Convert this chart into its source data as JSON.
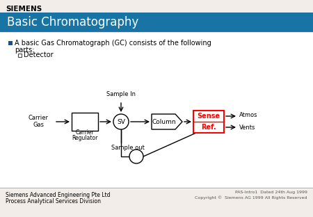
{
  "title": "Basic Chromatography",
  "title_bg_color": "#1874a4",
  "title_text_color": "#ffffff",
  "slide_bg_color": "#f2ede8",
  "content_bg_color": "#ffffff",
  "bullet_text1": "A basic Gas Chromatograph (GC) consists of the following",
  "bullet_text2": "parts:",
  "sub_bullet": "Detector",
  "siemens_logo": "SIEMENS",
  "footer_left1": "Siemens Advanced Engineering Pte Ltd",
  "footer_left2": "Process Analytical Services Division",
  "footer_right1": "PAS-Intro1  Dated 24th Aug 1999",
  "footer_right2": "Copyright ©  Siemens AG 1999 All Rights Reserved",
  "carrier_gas": [
    "Carrier",
    "Gas"
  ],
  "carrier_reg": [
    "Carrier",
    "Regulator"
  ],
  "sv_label": "SV",
  "column_label": "Column",
  "sense_label": "Sense",
  "ref_label": "Ref.",
  "atmos_label": [
    "Atmos",
    "Vents"
  ],
  "sample_in_label": "Sample In",
  "sample_out_label": "Sample out"
}
